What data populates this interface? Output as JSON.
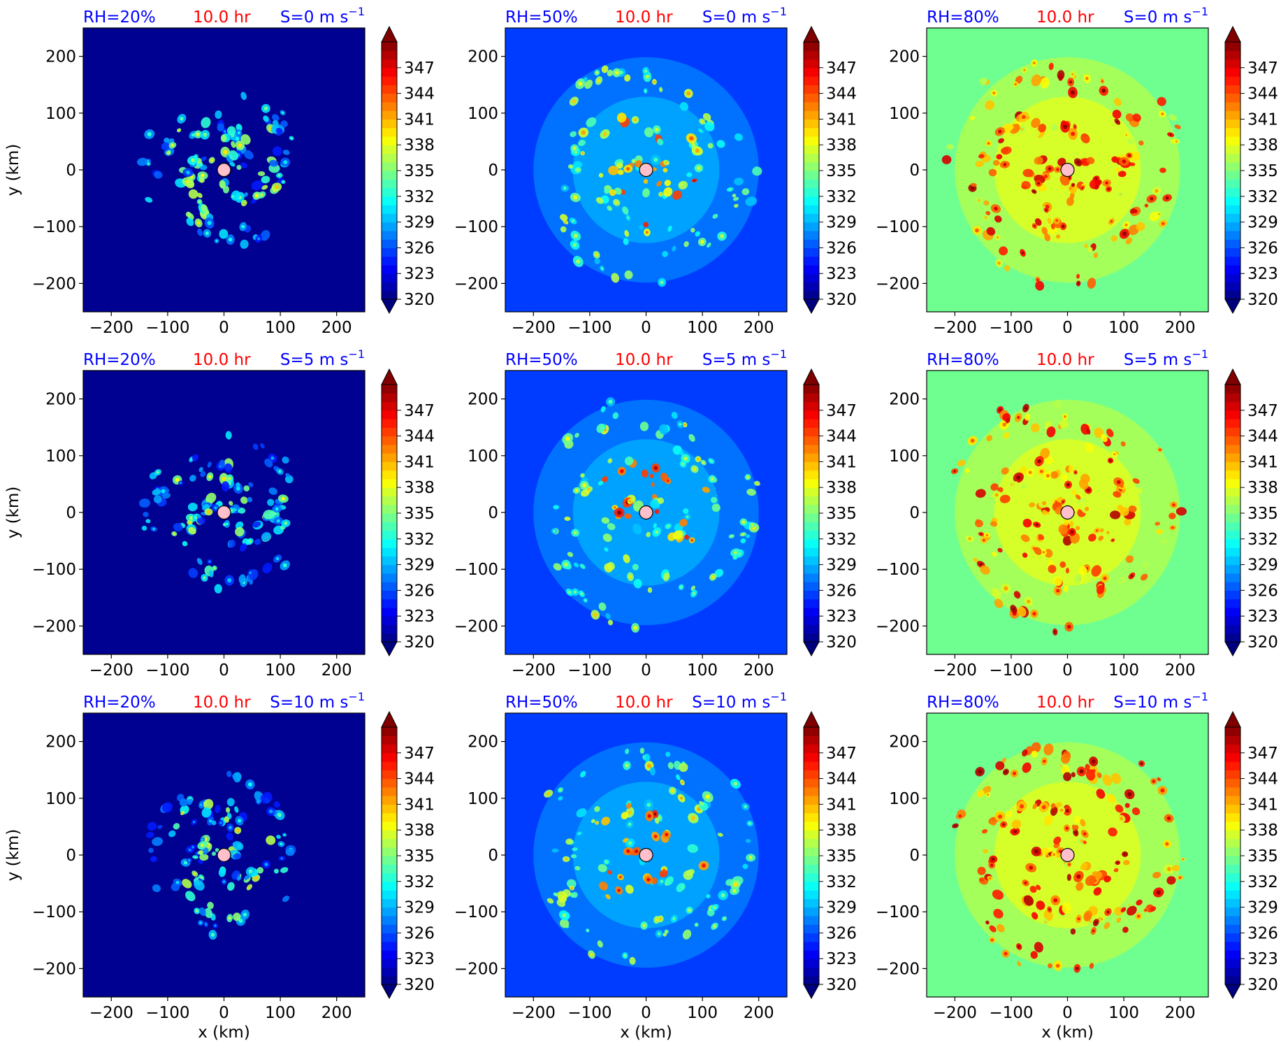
{
  "colorbar": {
    "ticks": [
      "320",
      "323",
      "326",
      "329",
      "332",
      "335",
      "338",
      "341",
      "344",
      "347"
    ],
    "extend": "both",
    "colormap": "jet",
    "vmin": 320,
    "vmax": 350
  },
  "axes": {
    "xlabel": "x (km)",
    "ylabel": "y (km)",
    "xticks": [
      "−200",
      "−100",
      "0",
      "100",
      "200"
    ],
    "yticks": [
      "200",
      "100",
      "0",
      "−100",
      "−200"
    ],
    "xlim": [
      -250,
      250
    ],
    "ylim": [
      -250,
      250
    ]
  },
  "colors": {
    "rh_label": "#0000ff",
    "time_label": "#ff0000",
    "shear_label": "#0000ff",
    "center_marker": "#ffc0cb"
  },
  "chart_data": [
    {
      "type": "heatmap",
      "row": 0,
      "col": 0,
      "rh": "RH=20%",
      "time": "10.0 hr",
      "shear": "S=0 m s",
      "shear_exp": "−1",
      "background_value": 320.0,
      "center": [
        0,
        0
      ]
    },
    {
      "type": "heatmap",
      "row": 0,
      "col": 1,
      "rh": "RH=50%",
      "time": "10.0 hr",
      "shear": "S=0 m s",
      "shear_exp": "−1",
      "background_value": 325.5,
      "center": [
        0,
        0
      ]
    },
    {
      "type": "heatmap",
      "row": 0,
      "col": 2,
      "rh": "RH=80%",
      "time": "10.0 hr",
      "shear": "S=0 m s",
      "shear_exp": "−1",
      "background_value": 334.5,
      "center": [
        0,
        0
      ]
    },
    {
      "type": "heatmap",
      "row": 1,
      "col": 0,
      "rh": "RH=20%",
      "time": "10.0 hr",
      "shear": "S=5 m s",
      "shear_exp": "−1",
      "background_value": 320.0,
      "center": [
        0,
        0
      ]
    },
    {
      "type": "heatmap",
      "row": 1,
      "col": 1,
      "rh": "RH=50%",
      "time": "10.0 hr",
      "shear": "S=5 m s",
      "shear_exp": "−1",
      "background_value": 325.5,
      "center": [
        0,
        0
      ]
    },
    {
      "type": "heatmap",
      "row": 1,
      "col": 2,
      "rh": "RH=80%",
      "time": "10.0 hr",
      "shear": "S=5 m s",
      "shear_exp": "−1",
      "background_value": 334.5,
      "center": [
        0,
        0
      ]
    },
    {
      "type": "heatmap",
      "row": 2,
      "col": 0,
      "rh": "RH=20%",
      "time": "10.0 hr",
      "shear": "S=10 m s",
      "shear_exp": "−1",
      "background_value": 320.0,
      "center": [
        0,
        0
      ]
    },
    {
      "type": "heatmap",
      "row": 2,
      "col": 1,
      "rh": "RH=50%",
      "time": "10.0 hr",
      "shear": "S=10 m s",
      "shear_exp": "−1",
      "background_value": 325.5,
      "center": [
        0,
        0
      ]
    },
    {
      "type": "heatmap",
      "row": 2,
      "col": 2,
      "rh": "RH=80%",
      "time": "10.0 hr",
      "shear": "S=10 m s",
      "shear_exp": "−1",
      "background_value": 334.5,
      "center": [
        0,
        0
      ]
    }
  ]
}
